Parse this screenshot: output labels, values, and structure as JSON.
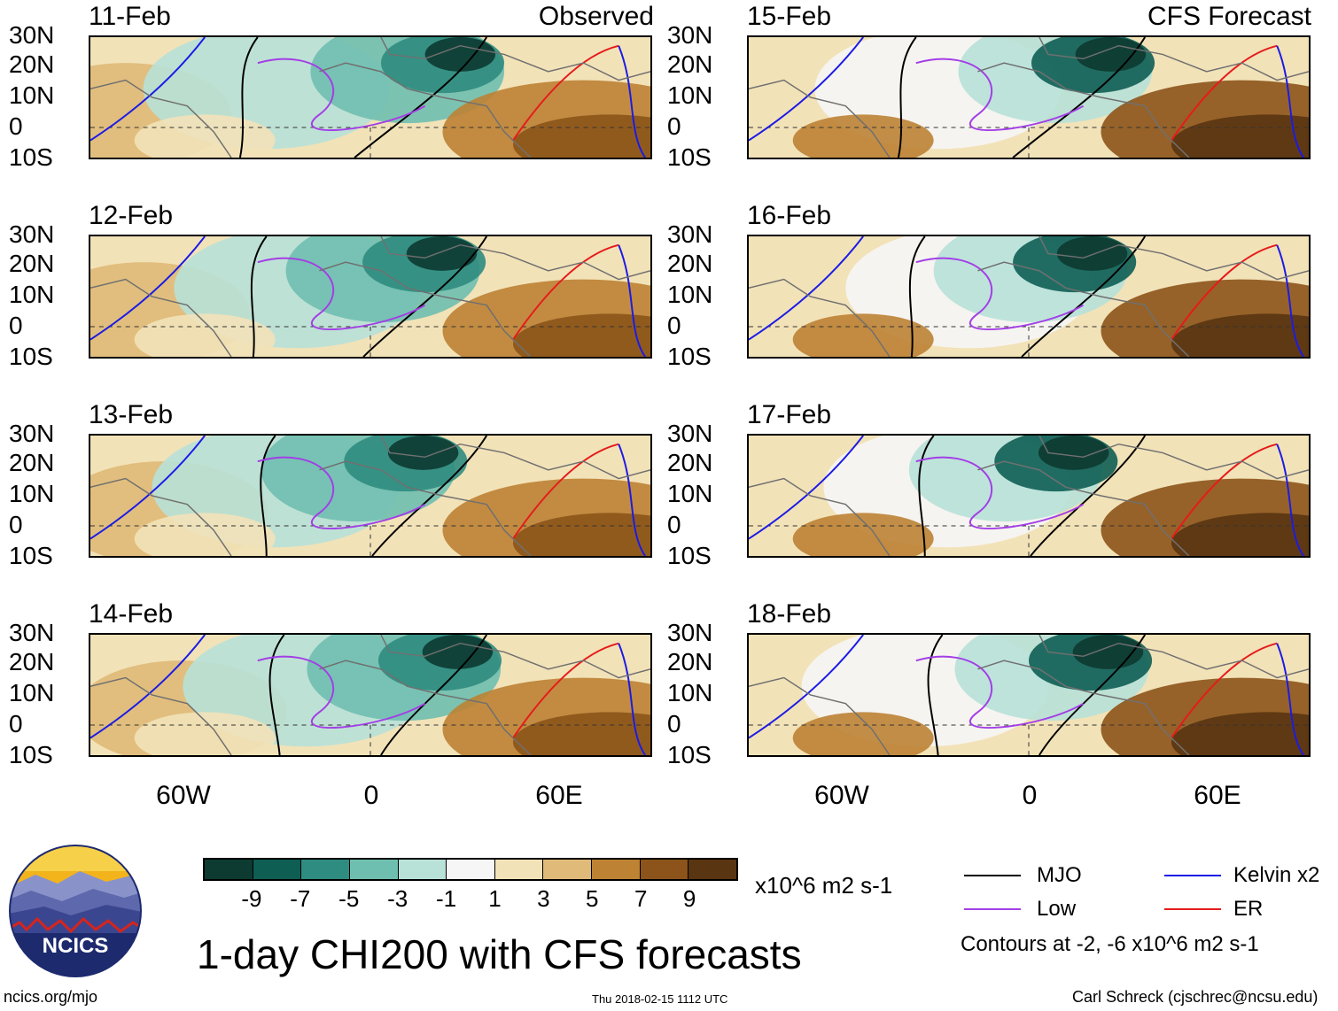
{
  "header": {
    "observed_label": "Observed",
    "forecast_label": "CFS Forecast"
  },
  "observed_panels": [
    {
      "date": "11-Feb"
    },
    {
      "date": "12-Feb"
    },
    {
      "date": "13-Feb"
    },
    {
      "date": "14-Feb"
    }
  ],
  "forecast_panels": [
    {
      "date": "15-Feb"
    },
    {
      "date": "16-Feb"
    },
    {
      "date": "17-Feb"
    },
    {
      "date": "18-Feb"
    }
  ],
  "lat_labels": [
    "30N",
    "20N",
    "10N",
    "0",
    "10S"
  ],
  "lon_labels": [
    "60W",
    "0",
    "60E"
  ],
  "colorbar": {
    "colors": [
      "#0d3a31",
      "#0e5e54",
      "#2f8c80",
      "#6fbfb0",
      "#b8e1d8",
      "#f6f6f6",
      "#f2e2b8",
      "#dfba78",
      "#bd8234",
      "#8c541a",
      "#593511"
    ],
    "labels": [
      "-9",
      "-7",
      "-5",
      "-3",
      "-1",
      "1",
      "3",
      "5",
      "7",
      "9"
    ],
    "units": "x10^6 m2 s-1"
  },
  "legend": {
    "items": [
      {
        "label": "MJO",
        "color": "#000000"
      },
      {
        "label": "Kelvin x2",
        "color": "#1b1be6"
      },
      {
        "label": "Low",
        "color": "#a33ee6"
      },
      {
        "label": "ER",
        "color": "#e61b1b"
      }
    ],
    "contours_note": "Contours at -2, -6 x10^6 m2 s-1"
  },
  "title": "1-day CHI200 with CFS forecasts",
  "logo": {
    "text": "NCICS"
  },
  "footer": {
    "url": "ncics.org/mjo",
    "timestamp": "Thu 2018-02-15 1112 UTC",
    "credit": "Carl Schreck (cjschrec@ncsu.edu)"
  }
}
